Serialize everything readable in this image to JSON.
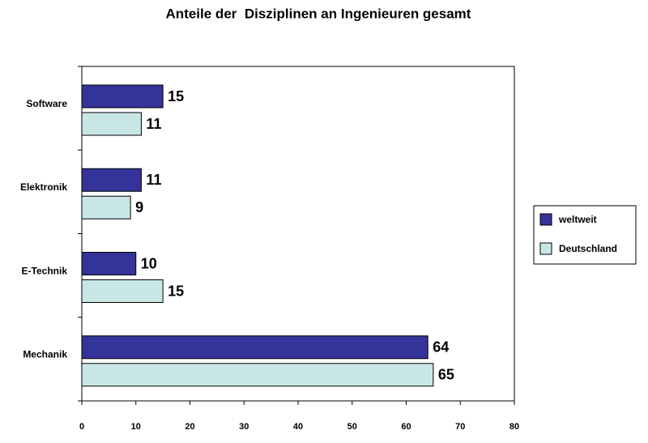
{
  "chart_data": {
    "type": "bar",
    "orientation": "horizontal",
    "title": "Anteile der  Disziplinen an Ingenieuren gesamt",
    "categories": [
      "Software",
      "Elektronik",
      "E-Technik",
      "Mechanik"
    ],
    "series": [
      {
        "name": "weltweit",
        "color": "#333399",
        "values": [
          15,
          11,
          10,
          64
        ]
      },
      {
        "name": "Deutschland",
        "color": "#c8e6e6",
        "values": [
          11,
          9,
          15,
          65
        ]
      }
    ],
    "xlim": [
      0,
      80
    ],
    "xticks": [
      0,
      10,
      20,
      30,
      40,
      50,
      60,
      70,
      80
    ],
    "grid": false,
    "legend": "right"
  }
}
